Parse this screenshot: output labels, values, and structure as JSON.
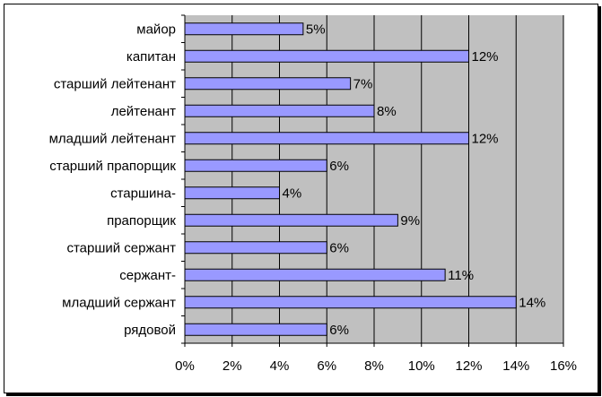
{
  "chart_data": {
    "type": "bar",
    "orientation": "horizontal",
    "categories": [
      "майор",
      "капитан",
      "старший лейтенант",
      "лейтенант",
      "младший лейтенант",
      "старший прапорщик",
      "старшина-",
      "прапорщик",
      "старший сержант",
      "сержант-",
      "младший сержант",
      "рядовой"
    ],
    "values": [
      5,
      12,
      7,
      8,
      12,
      6,
      4,
      9,
      6,
      11,
      14,
      6
    ],
    "value_labels": [
      "5%",
      "12%",
      "7%",
      "8%",
      "12%",
      "6%",
      "4%",
      "9%",
      "6%",
      "11%",
      "14%",
      "6%"
    ],
    "xlim": [
      0,
      16
    ],
    "xticks": [
      "0%",
      "2%",
      "4%",
      "6%",
      "8%",
      "10%",
      "12%",
      "14%",
      "16%"
    ],
    "grid": true,
    "colors": {
      "bar_fill": "#9999ff",
      "bar_stroke": "#000000",
      "plot_background": "#c0c0c0",
      "gridline": "#000000"
    }
  }
}
